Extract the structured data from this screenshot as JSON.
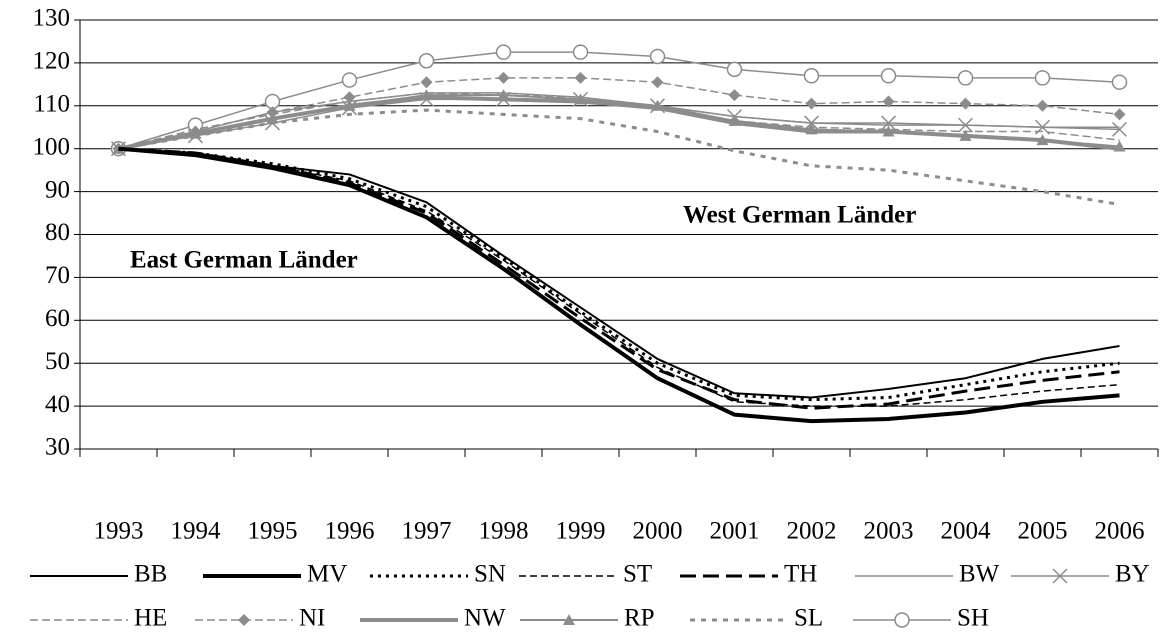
{
  "chart_data": {
    "type": "line",
    "categories": [
      "1993",
      "1994",
      "1995",
      "1996",
      "1997",
      "1998",
      "1999",
      "2000",
      "2001",
      "2002",
      "2003",
      "2004",
      "2005",
      "2006"
    ],
    "ylim": [
      30,
      130
    ],
    "yticks": [
      30,
      40,
      50,
      60,
      70,
      80,
      90,
      100,
      110,
      120,
      130
    ],
    "grid": true,
    "annotations": [
      "West German Länder",
      "East German Länder"
    ],
    "series": [
      {
        "name": "BB",
        "color": "#000000",
        "width": 2,
        "dash": "none",
        "marker": "none",
        "values": [
          100,
          99,
          96,
          94,
          87.5,
          75,
          63,
          51,
          43,
          42,
          44,
          46.5,
          51,
          54
        ]
      },
      {
        "name": "MV",
        "color": "#000000",
        "width": 4,
        "dash": "none",
        "marker": "none",
        "values": [
          100,
          98.5,
          95.5,
          91.5,
          84,
          72,
          59,
          46.5,
          38,
          36.5,
          37,
          38.5,
          41,
          42.5
        ]
      },
      {
        "name": "SN",
        "color": "#000000",
        "width": 3,
        "dash": "3 5",
        "marker": "none",
        "values": [
          100,
          99,
          96.5,
          93,
          86.5,
          74.5,
          62,
          50,
          42.5,
          41.5,
          42,
          45,
          48,
          50
        ]
      },
      {
        "name": "ST",
        "color": "#000000",
        "width": 1.5,
        "dash": "7 4",
        "marker": "none",
        "values": [
          100,
          99,
          96,
          92.5,
          85.5,
          74,
          61.5,
          49,
          41,
          40,
          40,
          41.5,
          43.5,
          45
        ]
      },
      {
        "name": "TH",
        "color": "#000000",
        "width": 3,
        "dash": "16 7",
        "marker": "none",
        "values": [
          100,
          99,
          96,
          92,
          85,
          73,
          60.5,
          48.5,
          41.5,
          39.5,
          40.5,
          43.5,
          46,
          48
        ]
      },
      {
        "name": "BW",
        "color": "#8c8c8c",
        "width": 1.5,
        "dash": "none",
        "marker": "none",
        "values": [
          100,
          104,
          108.5,
          111,
          113,
          113,
          112,
          110,
          107.5,
          106,
          105.5,
          105.5,
          105,
          105
        ]
      },
      {
        "name": "BY",
        "color": "#8c8c8c",
        "width": 1.5,
        "dash": "none",
        "marker": "x",
        "values": [
          100,
          103,
          106,
          109.5,
          111.5,
          111.5,
          111.5,
          110,
          107.5,
          106,
          106,
          105.5,
          105,
          104.5
        ]
      },
      {
        "name": "HE",
        "color": "#8c8c8c",
        "width": 1.5,
        "dash": "8 4",
        "marker": "none",
        "values": [
          100,
          104.5,
          108,
          111,
          113,
          112.5,
          112,
          110,
          106.5,
          105,
          104.5,
          104,
          104,
          102
        ]
      },
      {
        "name": "NI",
        "color": "#8c8c8c",
        "width": 1.5,
        "dash": "8 4",
        "marker": "diamond",
        "values": [
          100,
          104,
          108.5,
          112,
          115.5,
          116.5,
          116.5,
          115.5,
          112.5,
          110.5,
          111,
          110.5,
          110,
          108
        ]
      },
      {
        "name": "NW",
        "color": "#8c8c8c",
        "width": 4,
        "dash": "none",
        "marker": "none",
        "values": [
          100,
          103.5,
          107,
          110,
          112,
          111.5,
          111,
          109.5,
          106,
          104,
          104,
          103,
          102,
          100
        ]
      },
      {
        "name": "RP",
        "color": "#8c8c8c",
        "width": 2,
        "dash": "none",
        "marker": "triangle",
        "values": [
          100,
          103.5,
          107,
          110,
          112.5,
          112.5,
          111.5,
          110,
          106.5,
          104.5,
          104,
          103,
          102,
          100.5
        ]
      },
      {
        "name": "SL",
        "color": "#8c8c8c",
        "width": 3,
        "dash": "5 6",
        "marker": "none",
        "values": [
          100,
          103,
          106,
          108,
          109,
          108,
          107,
          104,
          99.5,
          96,
          95,
          92.5,
          90,
          87
        ]
      },
      {
        "name": "SH",
        "color": "#8c8c8c",
        "width": 1.5,
        "dash": "none",
        "marker": "circle",
        "values": [
          100,
          105.5,
          111,
          116,
          120.5,
          122.5,
          122.5,
          121.5,
          118.5,
          117,
          117,
          116.5,
          116.5,
          115.5
        ]
      }
    ]
  }
}
